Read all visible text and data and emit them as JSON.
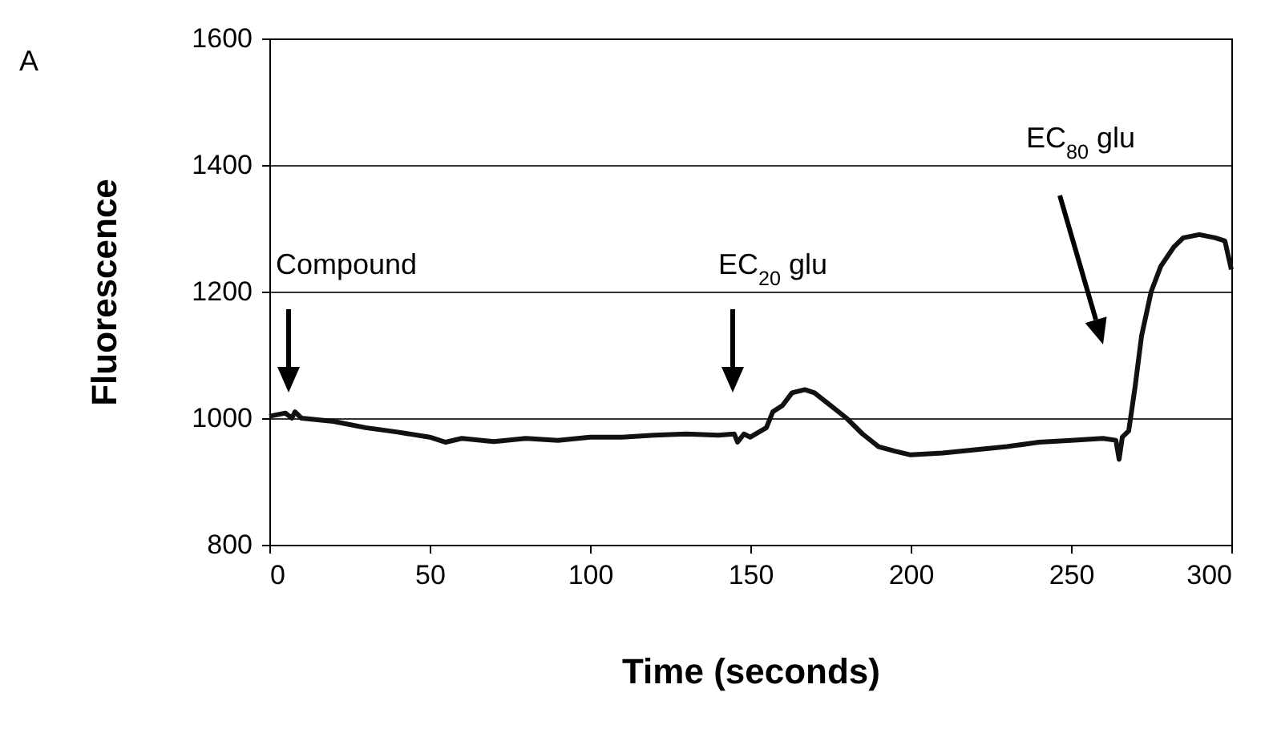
{
  "chart_data": {
    "type": "line",
    "xlabel": "Time (seconds)",
    "ylabel": "Fluorescence",
    "x": [
      0,
      5,
      7,
      8,
      10,
      20,
      30,
      40,
      50,
      55,
      60,
      70,
      80,
      90,
      100,
      110,
      120,
      130,
      140,
      145,
      146,
      148,
      150,
      155,
      157,
      160,
      163,
      167,
      170,
      175,
      180,
      185,
      190,
      195,
      200,
      210,
      220,
      230,
      240,
      250,
      260,
      264,
      265,
      266,
      268,
      270,
      272,
      275,
      278,
      282,
      285,
      290,
      295,
      298,
      300
    ],
    "series": [
      {
        "color": "#111111",
        "values": [
          1003,
          1008,
          1000,
          1010,
          1000,
          995,
          985,
          978,
          970,
          962,
          968,
          963,
          968,
          965,
          970,
          970,
          973,
          975,
          973,
          975,
          962,
          975,
          970,
          985,
          1010,
          1020,
          1040,
          1045,
          1040,
          1020,
          1000,
          975,
          955,
          948,
          942,
          945,
          950,
          955,
          962,
          965,
          968,
          965,
          935,
          970,
          980,
          1050,
          1130,
          1200,
          1240,
          1270,
          1285,
          1290,
          1285,
          1280,
          1235
        ]
      }
    ],
    "xlim": [
      0,
      300
    ],
    "xticks": [
      0,
      50,
      100,
      150,
      200,
      250,
      300
    ],
    "ylim": [
      800,
      1600
    ],
    "yticks": [
      800,
      1000,
      1200,
      1400,
      1600
    ],
    "grid": "y",
    "legend": false,
    "marker": "none",
    "line_style": "solid",
    "annotations": [
      "A",
      "Compound",
      "EC$_{20}$ glu",
      "EC$_{80}$ glu"
    ]
  }
}
